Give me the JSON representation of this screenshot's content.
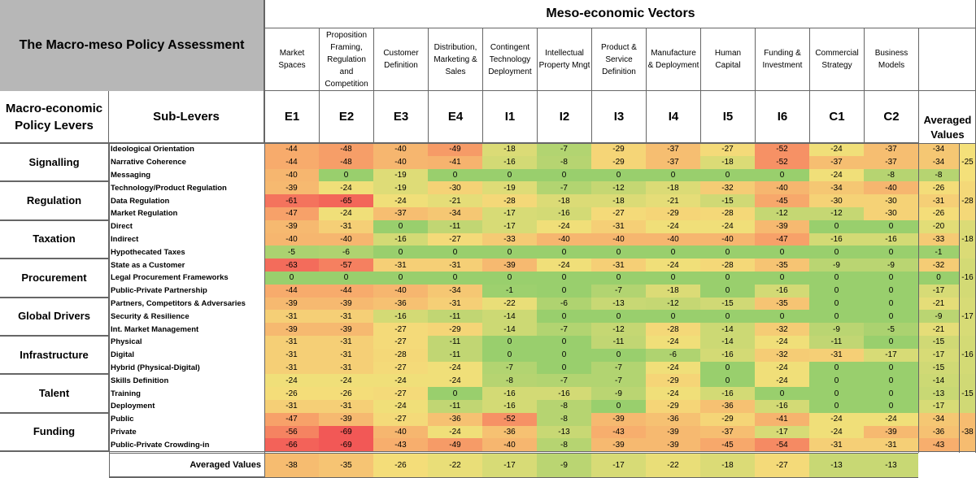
{
  "title": "The Macro-meso Policy Assessment",
  "meso_title": "Meso-economic Vectors",
  "macro_header": "Macro-economic Policy Levers",
  "sublever_header": "Sub-Levers",
  "averaged_values_header": "Averaged Values",
  "averaged_values_label": "Averaged Values",
  "vectors": [
    {
      "name": "Market Spaces",
      "code": "E1"
    },
    {
      "name": "Proposition Framing, Regulation and Competition",
      "code": "E2"
    },
    {
      "name": "Customer Definition",
      "code": "E3"
    },
    {
      "name": "Distribution, Marketing & Sales",
      "code": "E4"
    },
    {
      "name": "Contingent Technology Deployment",
      "code": "I1"
    },
    {
      "name": "Intellectual Property Mngt",
      "code": "I2"
    },
    {
      "name": "Product & Service Definition",
      "code": "I3"
    },
    {
      "name": "Manufacture & Deployment",
      "code": "I4"
    },
    {
      "name": "Human Capital",
      "code": "I5"
    },
    {
      "name": "Funding & Investment",
      "code": "I6"
    },
    {
      "name": "Commercial Strategy",
      "code": "C1"
    },
    {
      "name": "Business Models",
      "code": "C2"
    }
  ],
  "groups": [
    {
      "lever": "Signalling",
      "avg": "-25",
      "rows": [
        {
          "name": "Ideological Orientation",
          "values": [
            "-44",
            "-48",
            "-40",
            "-49",
            "-18",
            "-7",
            "-29",
            "-37",
            "-27",
            "-52",
            "-24",
            "-37"
          ],
          "avg": "-34"
        },
        {
          "name": "Narrative Coherence",
          "values": [
            "-44",
            "-48",
            "-40",
            "-41",
            "-16",
            "-8",
            "-29",
            "-37",
            "-18",
            "-52",
            "-37",
            "-37"
          ],
          "avg": "-34"
        },
        {
          "name": "Messaging",
          "values": [
            "-40",
            "0",
            "-19",
            "0",
            "0",
            "0",
            "0",
            "0",
            "0",
            "0",
            "-24",
            "-8"
          ],
          "avg": "-8"
        }
      ]
    },
    {
      "lever": "Regulation",
      "avg": "-28",
      "rows": [
        {
          "name": "Technology/Product Regulation",
          "values": [
            "-39",
            "-24",
            "-19",
            "-30",
            "-19",
            "-7",
            "-12",
            "-18",
            "-32",
            "-40",
            "-34",
            "-40"
          ],
          "avg": "-26"
        },
        {
          "name": "Data Regulation",
          "values": [
            "-61",
            "-65",
            "-24",
            "-21",
            "-28",
            "-18",
            "-18",
            "-21",
            "-15",
            "-45",
            "-30",
            "-30"
          ],
          "avg": "-31"
        },
        {
          "name": "Market Regulation",
          "values": [
            "-47",
            "-24",
            "-37",
            "-34",
            "-17",
            "-16",
            "-27",
            "-29",
            "-28",
            "-12",
            "-12",
            "-30"
          ],
          "avg": "-26"
        }
      ]
    },
    {
      "lever": "Taxation",
      "avg": "-18",
      "rows": [
        {
          "name": "Direct",
          "values": [
            "-39",
            "-31",
            "0",
            "-11",
            "-17",
            "-24",
            "-31",
            "-24",
            "-24",
            "-39",
            "0",
            "0"
          ],
          "avg": "-20"
        },
        {
          "name": "Indirect",
          "values": [
            "-40",
            "-40",
            "-16",
            "-27",
            "-33",
            "-40",
            "-40",
            "-40",
            "-40",
            "-47",
            "-16",
            "-16"
          ],
          "avg": "-33"
        },
        {
          "name": "Hypothecated Taxes",
          "values": [
            "-5",
            "-6",
            "0",
            "0",
            "0",
            "0",
            "0",
            "0",
            "0",
            "0",
            "0",
            "0"
          ],
          "avg": "-1"
        }
      ]
    },
    {
      "lever": "Procurement",
      "avg": "-16",
      "rows": [
        {
          "name": "State as a Customer",
          "values": [
            "-63",
            "-57",
            "-31",
            "-31",
            "-39",
            "-24",
            "-31",
            "-24",
            "-28",
            "-35",
            "-9",
            "-9"
          ],
          "avg": "-32"
        },
        {
          "name": "Legal Procurement Frameworks",
          "values": [
            "0",
            "0",
            "0",
            "0",
            "0",
            "0",
            "0",
            "0",
            "0",
            "0",
            "0",
            "0"
          ],
          "avg": "0"
        },
        {
          "name": "Public-Private Partnership",
          "values": [
            "-44",
            "-44",
            "-40",
            "-34",
            "-1",
            "0",
            "-7",
            "-18",
            "0",
            "-16",
            "0",
            "0"
          ],
          "avg": "-17"
        }
      ]
    },
    {
      "lever": "Global Drivers",
      "avg": "-17",
      "rows": [
        {
          "name": "Partners, Competitors & Adversaries",
          "values": [
            "-39",
            "-39",
            "-36",
            "-31",
            "-22",
            "-6",
            "-13",
            "-12",
            "-15",
            "-35",
            "0",
            "0"
          ],
          "avg": "-21"
        },
        {
          "name": "Security & Resilience",
          "values": [
            "-31",
            "-31",
            "-16",
            "-11",
            "-14",
            "0",
            "0",
            "0",
            "0",
            "0",
            "0",
            "0"
          ],
          "avg": "-9"
        },
        {
          "name": "Int. Market Management",
          "values": [
            "-39",
            "-39",
            "-27",
            "-29",
            "-14",
            "-7",
            "-12",
            "-28",
            "-14",
            "-32",
            "-9",
            "-5"
          ],
          "avg": "-21"
        }
      ]
    },
    {
      "lever": "Infrastructure",
      "avg": "-16",
      "rows": [
        {
          "name": "Physical",
          "values": [
            "-31",
            "-31",
            "-27",
            "-11",
            "0",
            "0",
            "-11",
            "-24",
            "-14",
            "-24",
            "-11",
            "0"
          ],
          "avg": "-15"
        },
        {
          "name": "Digital",
          "values": [
            "-31",
            "-31",
            "-28",
            "-11",
            "0",
            "0",
            "0",
            "-6",
            "-16",
            "-32",
            "-31",
            "-17"
          ],
          "avg": "-17"
        },
        {
          "name": "Hybrid (Physical-Digital)",
          "values": [
            "-31",
            "-31",
            "-27",
            "-24",
            "-7",
            "0",
            "-7",
            "-24",
            "0",
            "-24",
            "0",
            "0"
          ],
          "avg": "-15"
        }
      ]
    },
    {
      "lever": "Talent",
      "avg": "-15",
      "rows": [
        {
          "name": "Skills Definition",
          "values": [
            "-24",
            "-24",
            "-24",
            "-24",
            "-8",
            "-7",
            "-7",
            "-29",
            "0",
            "-24",
            "0",
            "0"
          ],
          "avg": "-14"
        },
        {
          "name": "Training",
          "values": [
            "-26",
            "-26",
            "-27",
            "0",
            "-16",
            "-16",
            "-9",
            "-24",
            "-16",
            "0",
            "0",
            "0"
          ],
          "avg": "-13"
        },
        {
          "name": "Deployment",
          "values": [
            "-31",
            "-31",
            "-24",
            "-11",
            "-16",
            "-8",
            "0",
            "-29",
            "-36",
            "-16",
            "0",
            "0"
          ],
          "avg": "-17"
        }
      ]
    },
    {
      "lever": "Funding",
      "avg": "-38",
      "rows": [
        {
          "name": "Public",
          "values": [
            "-47",
            "-39",
            "-27",
            "-36",
            "-52",
            "-8",
            "-39",
            "-36",
            "-29",
            "-41",
            "-24",
            "-24"
          ],
          "avg": "-34"
        },
        {
          "name": "Private",
          "values": [
            "-56",
            "-69",
            "-40",
            "-24",
            "-36",
            "-13",
            "-43",
            "-39",
            "-37",
            "-17",
            "-24",
            "-39"
          ],
          "avg": "-36"
        },
        {
          "name": "Public-Private Crowding-in",
          "values": [
            "-66",
            "-69",
            "-43",
            "-49",
            "-40",
            "-8",
            "-39",
            "-39",
            "-45",
            "-54",
            "-31",
            "-31"
          ],
          "avg": "-43"
        }
      ]
    }
  ],
  "column_averages": [
    "-38",
    "-35",
    "-26",
    "-22",
    "-17",
    "-9",
    "-17",
    "-22",
    "-18",
    "-27",
    "-13",
    "-13"
  ]
}
